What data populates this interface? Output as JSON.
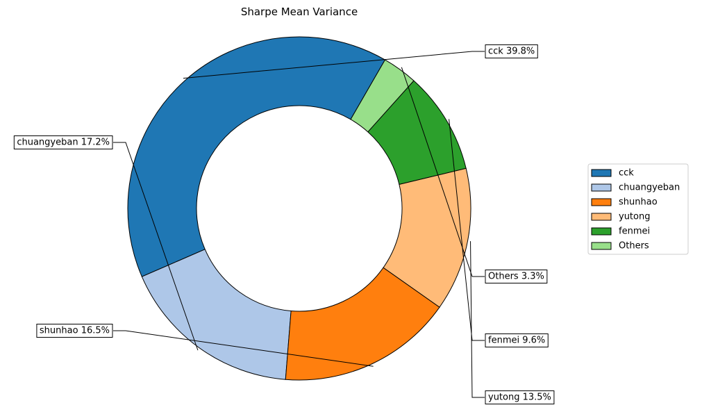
{
  "chart_data": {
    "type": "pie",
    "donut": true,
    "title": "Sharpe Mean Variance",
    "legend_position": "right",
    "slices": [
      {
        "label": "cck",
        "value": 39.8,
        "display": "cck 39.8%",
        "color": "#1f77b4"
      },
      {
        "label": "chuangyeban",
        "value": 17.2,
        "display": "chuangyeban 17.2%",
        "color": "#aec7e8"
      },
      {
        "label": "shunhao",
        "value": 16.5,
        "display": "shunhao 16.5%",
        "color": "#ff7f0e"
      },
      {
        "label": "yutong",
        "value": 13.5,
        "display": "yutong 13.5%",
        "color": "#ffbb78"
      },
      {
        "label": "fenmei",
        "value": 9.6,
        "display": "fenmei 9.6%",
        "color": "#2ca02c"
      },
      {
        "label": "Others",
        "value": 3.3,
        "display": "Others 3.3%",
        "color": "#98df8a"
      }
    ]
  }
}
